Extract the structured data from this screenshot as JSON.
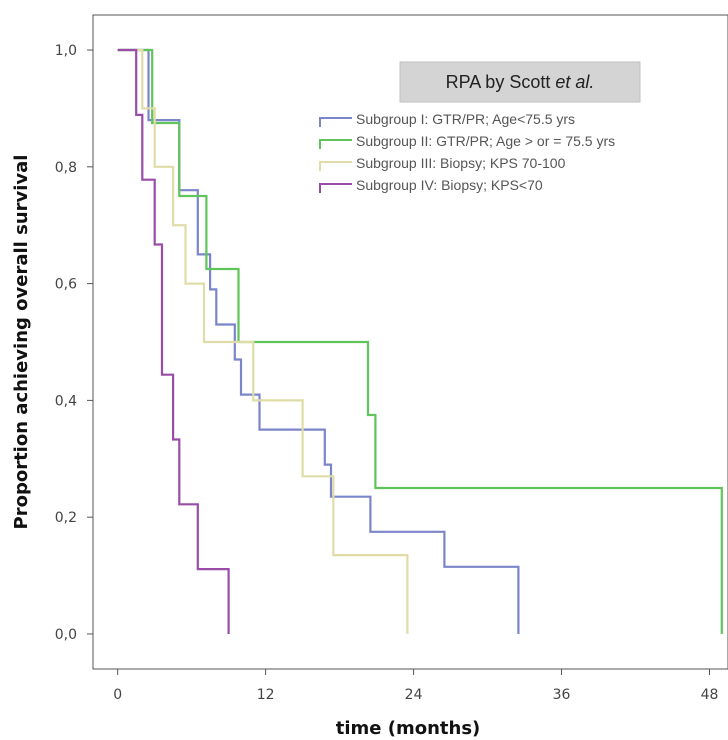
{
  "chart_data": {
    "type": "line",
    "step": true,
    "title_prefix": "RPA by Scott ",
    "title_emph": "et al.",
    "xlabel": "time (months)",
    "ylabel": "Proportion achieving overall survival",
    "xlim": [
      -2,
      49.5
    ],
    "ylim": [
      -0.06,
      1.06
    ],
    "xticks": [
      0,
      12,
      24,
      36,
      48
    ],
    "xtick_labels": [
      "0",
      "12",
      "24",
      "36",
      "48"
    ],
    "yticks": [
      0.0,
      0.2,
      0.4,
      0.6,
      0.8,
      1.0
    ],
    "ytick_labels": [
      "0,0",
      "0,2",
      "0,4",
      "0,6",
      "0,8",
      "1,0"
    ],
    "grid": false,
    "legend_position": "top-right",
    "series": [
      {
        "name": "Subgroup I: GTR/PR; Age<75.5 yrs",
        "color": "#7b85c9",
        "x": [
          0,
          2.5,
          2.5,
          5,
          5,
          6.5,
          6.5,
          7.5,
          7.5,
          8,
          8,
          9.5,
          9.5,
          10,
          10,
          11.5,
          11.5,
          16.8,
          16.8,
          17.3,
          17.3,
          20.5,
          20.5,
          26.5,
          26.5,
          29,
          29,
          32.5,
          32.5
        ],
        "y": [
          1.0,
          1.0,
          0.88,
          0.88,
          0.76,
          0.76,
          0.65,
          0.65,
          0.59,
          0.59,
          0.53,
          0.53,
          0.47,
          0.47,
          0.41,
          0.41,
          0.35,
          0.35,
          0.29,
          0.29,
          0.235,
          0.235,
          0.175,
          0.175,
          0.115,
          0.115,
          0.115,
          0.115,
          0.0
        ]
      },
      {
        "name": "Subgroup II: GTR/PR; Age > or = 75.5 yrs",
        "color": "#5fc45a",
        "x": [
          0,
          2.8,
          2.8,
          5,
          5,
          7.2,
          7.2,
          9.8,
          9.8,
          20.3,
          20.3,
          20.9,
          20.9,
          49,
          49
        ],
        "y": [
          1.0,
          1.0,
          0.875,
          0.875,
          0.75,
          0.75,
          0.625,
          0.625,
          0.5,
          0.5,
          0.375,
          0.375,
          0.25,
          0.25,
          0.0
        ]
      },
      {
        "name": "Subgroup III: Biopsy; KPS 70-100",
        "color": "#e0dca8",
        "x": [
          0,
          2,
          2,
          3,
          3,
          4.5,
          4.5,
          5.5,
          5.5,
          7,
          7,
          11,
          11,
          15,
          15,
          17.5,
          17.5,
          23.5,
          23.5
        ],
        "y": [
          1.0,
          1.0,
          0.9,
          0.9,
          0.8,
          0.8,
          0.7,
          0.7,
          0.6,
          0.6,
          0.5,
          0.5,
          0.4,
          0.4,
          0.27,
          0.27,
          0.135,
          0.135,
          0.0
        ]
      },
      {
        "name": "Subgroup IV: Biopsy; KPS<70",
        "color": "#9a4da8",
        "x": [
          0,
          1.5,
          1.5,
          2,
          2,
          3,
          3,
          3.6,
          3.6,
          4.5,
          4.5,
          5,
          5,
          6.5,
          6.5,
          9,
          9
        ],
        "y": [
          1.0,
          1.0,
          0.889,
          0.889,
          0.778,
          0.778,
          0.667,
          0.667,
          0.444,
          0.444,
          0.333,
          0.333,
          0.222,
          0.222,
          0.111,
          0.111,
          0.0
        ]
      }
    ]
  }
}
